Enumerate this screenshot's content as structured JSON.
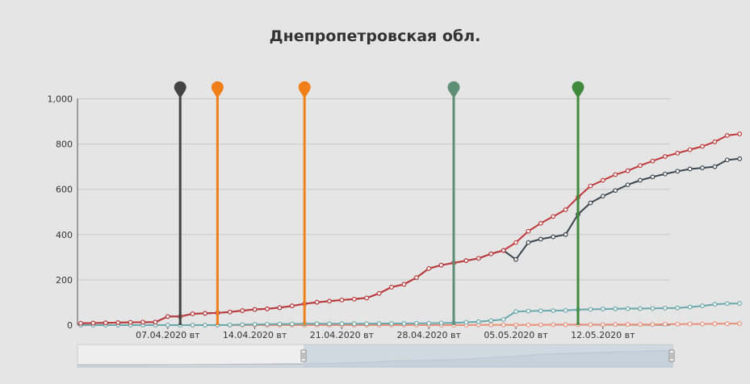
{
  "chart_data": {
    "type": "line",
    "title": "Днепропетровская обл.",
    "xlabel": "",
    "ylabel": "",
    "ylim": [
      0,
      1000
    ],
    "grid": true,
    "start_date": "2020-03-31",
    "y_ticks": [
      "0",
      "200",
      "400",
      "600",
      "800",
      "1,000"
    ],
    "x_ticks": [
      {
        "day": 7,
        "label": "07.04.2020 вт"
      },
      {
        "day": 14,
        "label": "14.04.2020 вт"
      },
      {
        "day": 21,
        "label": "21.04.2020 вт"
      },
      {
        "day": 28,
        "label": "28.04.2020 вт"
      },
      {
        "day": 35,
        "label": "05.05.2020 вт"
      },
      {
        "day": 42,
        "label": "12.05.2020 вт"
      }
    ],
    "series": [
      {
        "color": "#c0393b",
        "values": [
          8,
          9,
          10,
          11,
          12,
          13,
          13,
          38,
          38,
          50,
          52,
          54,
          58,
          64,
          69,
          72,
          77,
          85,
          94,
          101,
          106,
          111,
          115,
          120,
          140,
          168,
          180,
          210,
          250,
          265,
          275,
          285,
          295,
          315,
          330,
          365,
          415,
          450,
          480,
          510,
          565,
          615,
          640,
          665,
          682,
          705,
          725,
          745,
          760,
          775,
          790,
          810,
          838,
          845
        ]
      },
      {
        "color": "#3a4550",
        "values": [
          8,
          9,
          10,
          11,
          12,
          13,
          13,
          38,
          38,
          50,
          52,
          54,
          58,
          64,
          69,
          72,
          77,
          85,
          94,
          101,
          106,
          111,
          115,
          120,
          140,
          168,
          180,
          210,
          250,
          265,
          275,
          285,
          295,
          315,
          330,
          290,
          365,
          380,
          390,
          400,
          490,
          540,
          570,
          595,
          620,
          640,
          655,
          668,
          680,
          690,
          695,
          700,
          730,
          735
        ]
      },
      {
        "color": "#6aa8ac",
        "values": [
          0,
          0,
          0,
          0,
          0,
          0,
          0,
          0,
          0,
          0,
          0,
          0,
          1,
          2,
          3,
          4,
          5,
          5,
          6,
          6,
          6,
          6,
          6,
          6,
          7,
          7,
          7,
          8,
          8,
          9,
          10,
          12,
          15,
          20,
          25,
          60,
          62,
          63,
          64,
          65,
          68,
          70,
          71,
          72,
          73,
          73,
          74,
          75,
          76,
          80,
          85,
          92,
          95,
          96
        ]
      },
      {
        "color": "#e8907a",
        "values": [
          0,
          0,
          0,
          0,
          0,
          0,
          0,
          0,
          0,
          0,
          0,
          0,
          0,
          0,
          0,
          0,
          0,
          0,
          0,
          0,
          0,
          0,
          0,
          0,
          0,
          0,
          0,
          0,
          0,
          0,
          0,
          0,
          1,
          1,
          1,
          1,
          1,
          1,
          2,
          2,
          2,
          2,
          2,
          3,
          3,
          3,
          3,
          4,
          4,
          5,
          5,
          6,
          6,
          7
        ]
      }
    ],
    "events": [
      {
        "day": 8,
        "color": "#444444"
      },
      {
        "day": 11,
        "color": "#f07f1a"
      },
      {
        "day": 18,
        "color": "#f07f1a"
      },
      {
        "day": 30,
        "color": "#5e8e73"
      },
      {
        "day": 40,
        "color": "#3f8a3d"
      }
    ],
    "navigator": {
      "selection_start": 0.38,
      "selection_end": 1.0
    }
  }
}
